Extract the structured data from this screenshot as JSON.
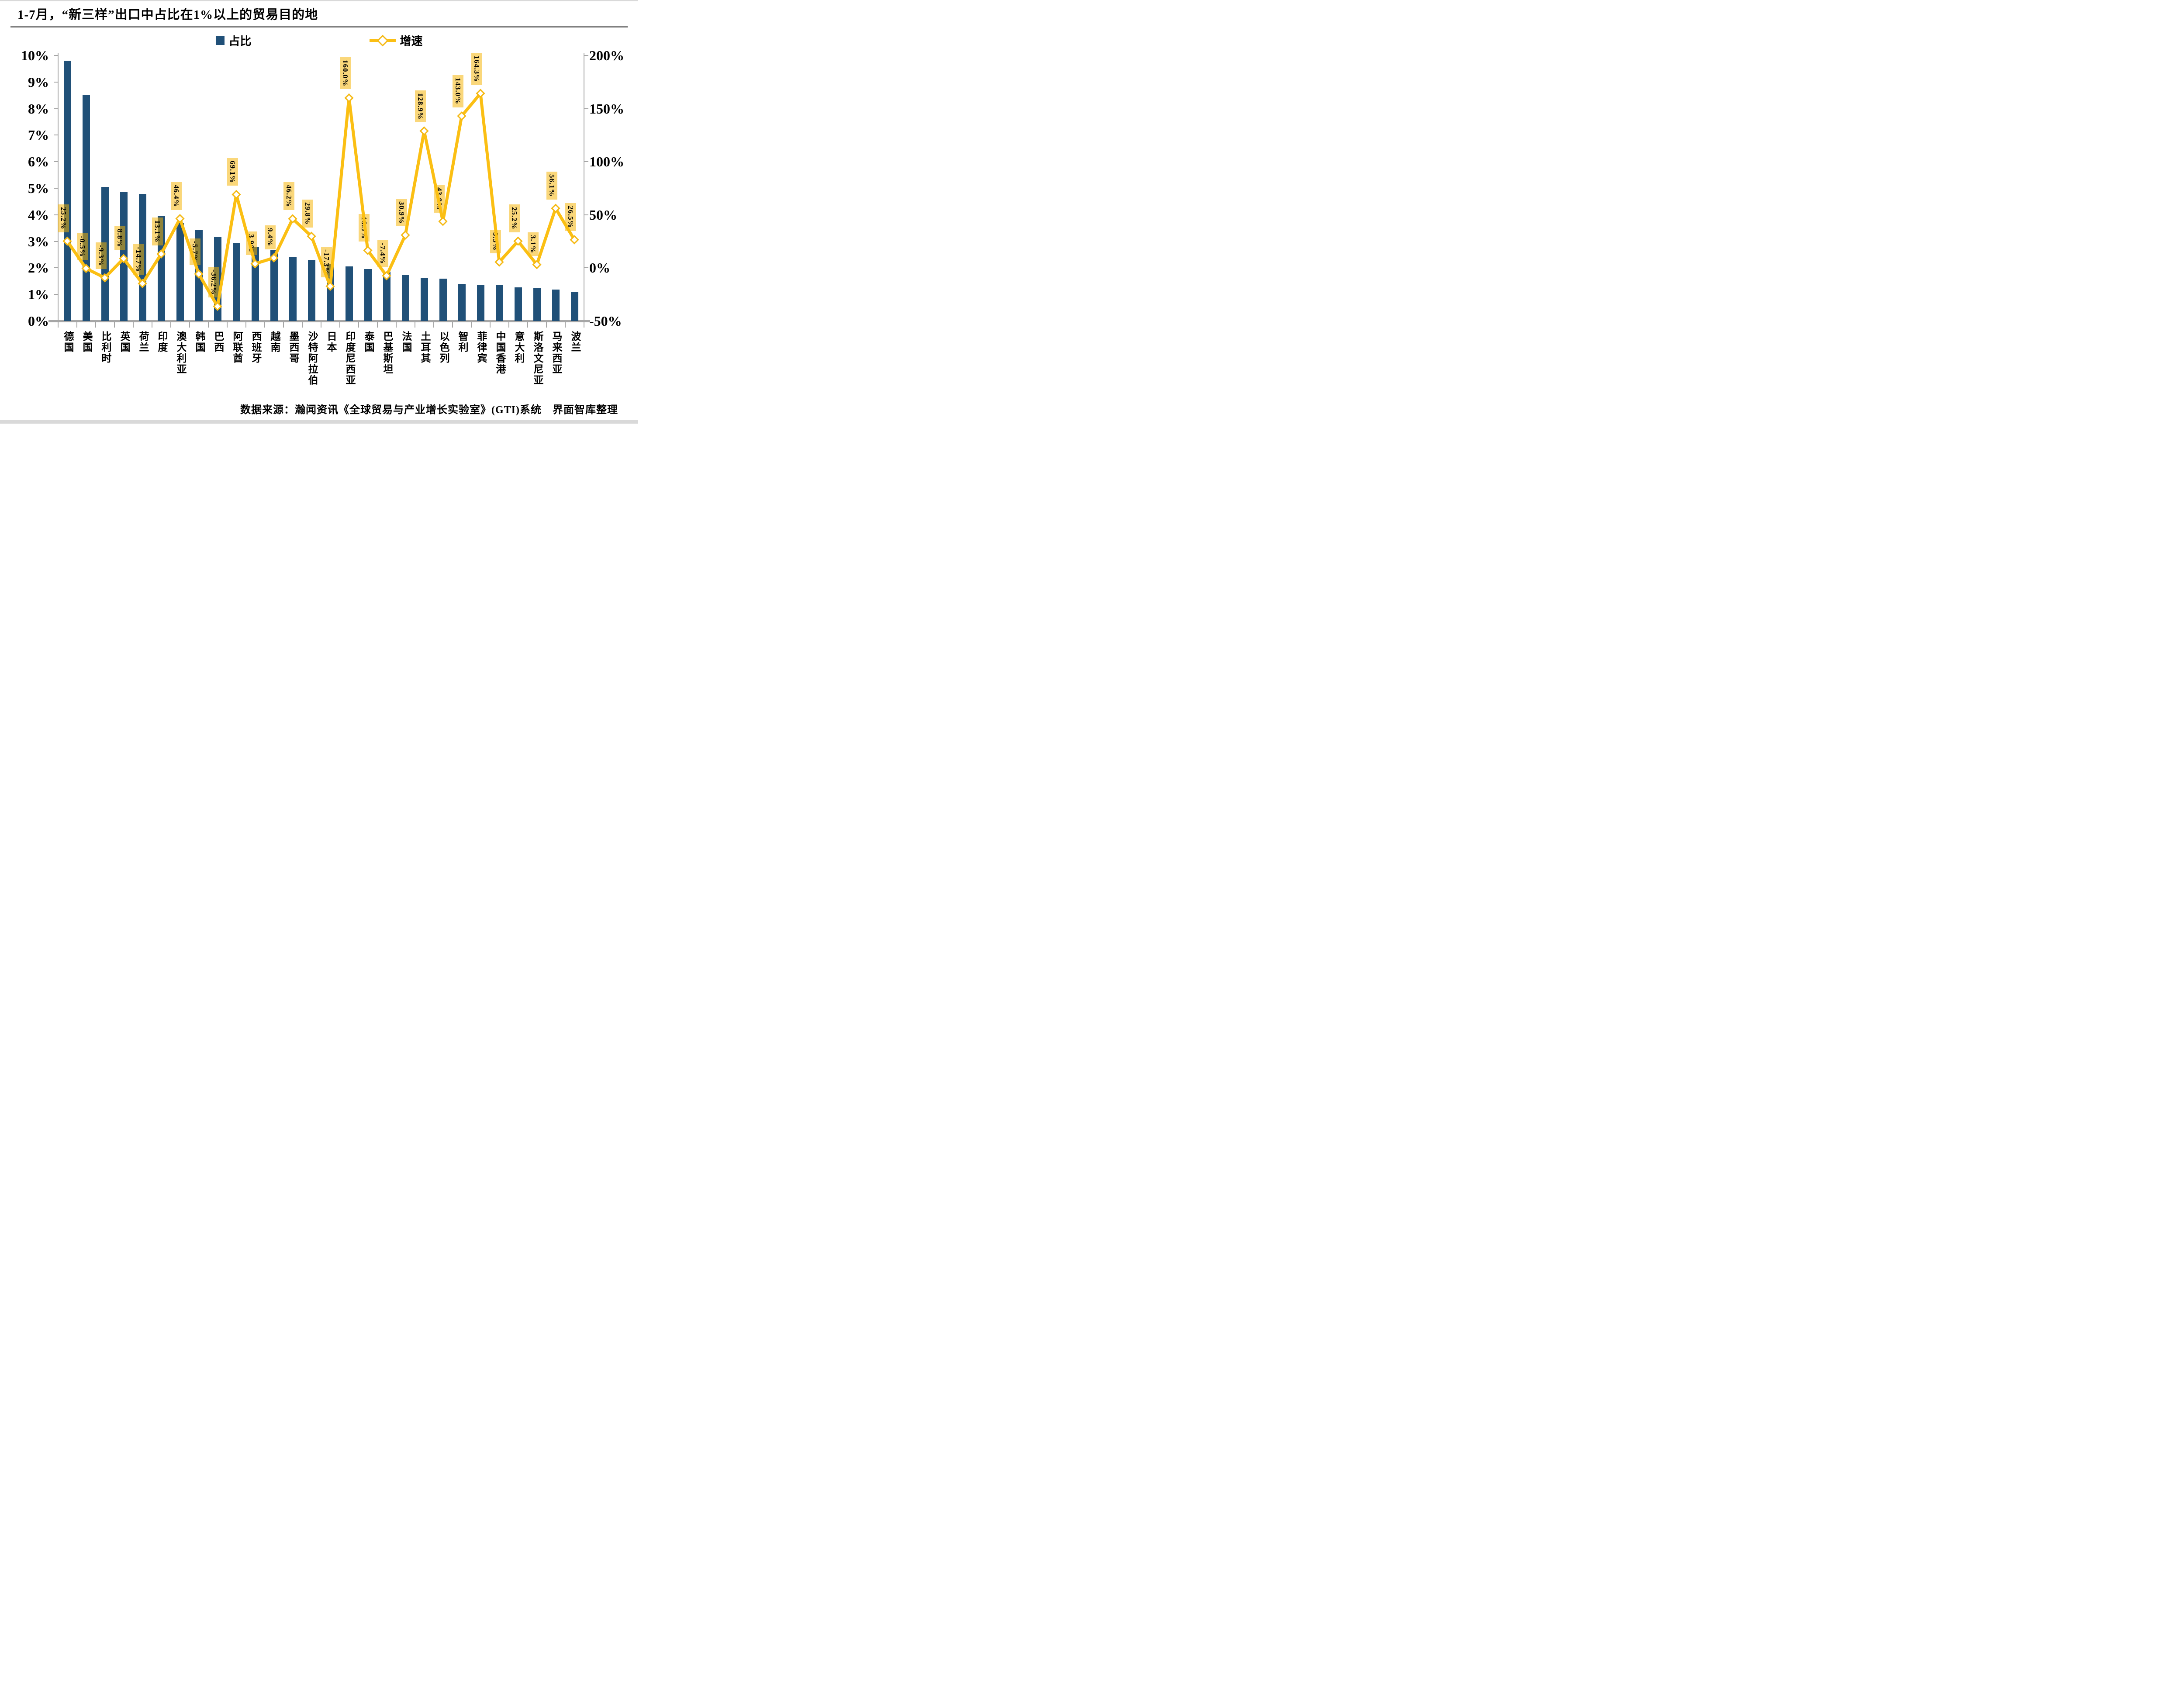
{
  "chart_data": {
    "type": "bar",
    "combo_types": [
      "bar",
      "line"
    ],
    "title": "1-7月，“新三样”出口中占比在1%以上的贸易目的地",
    "categories": [
      "德国",
      "美国",
      "比利时",
      "英国",
      "荷兰",
      "印度",
      "澳大利亚",
      "韩国",
      "巴西",
      "阿联酋",
      "西班牙",
      "越南",
      "墨西哥",
      "沙特阿拉伯",
      "日本",
      "印度尼西亚",
      "泰国",
      "巴基斯坦",
      "法国",
      "土耳其",
      "以色列",
      "智利",
      "菲律宾",
      "中国香港",
      "意大利",
      "斯洛文尼亚",
      "马来西亚",
      "波兰"
    ],
    "series": [
      {
        "name": "占比",
        "type": "bar",
        "axis": "left",
        "unit": "%",
        "values": [
          9.8,
          8.5,
          5.05,
          4.85,
          4.78,
          3.97,
          3.7,
          3.42,
          3.18,
          2.95,
          2.8,
          2.67,
          2.4,
          2.3,
          2.16,
          2.06,
          1.96,
          1.86,
          1.72,
          1.63,
          1.6,
          1.4,
          1.36,
          1.35,
          1.26,
          1.24,
          1.18,
          1.1
        ]
      },
      {
        "name": "增速",
        "type": "line",
        "axis": "right",
        "unit": "%",
        "values": [
          25.2,
          -0.5,
          -9.3,
          8.8,
          -14.7,
          13.1,
          46.4,
          -5.7,
          -36.2,
          69.1,
          3.9,
          9.4,
          46.2,
          29.8,
          -17.3,
          160.0,
          16.5,
          -7.4,
          30.9,
          128.9,
          43.8,
          143.0,
          164.3,
          5.5,
          25.2,
          3.1,
          56.1,
          26.5
        ],
        "labels": [
          "25.2%",
          "-0.5%",
          "-9.3%",
          "8.8%",
          "-14.7%",
          "13.1%",
          "46.4%",
          "-5.7%",
          "-36.2%",
          "69.1%",
          "3.9%",
          "9.4%",
          "46.2%",
          "29.8%",
          "-17.3%",
          "160.0%",
          "16.5%",
          "-7.4%",
          "30.9%",
          "128.9%",
          "43.8%",
          "143.0%",
          "164.3%",
          "5.5%",
          "25.2%",
          "3.1%",
          "56.1%",
          "26.5%"
        ]
      }
    ],
    "left_axis": {
      "min": 0,
      "max": 10,
      "step": 1,
      "ticks": [
        "0%",
        "1%",
        "2%",
        "3%",
        "4%",
        "5%",
        "6%",
        "7%",
        "8%",
        "9%",
        "10%"
      ]
    },
    "right_axis": {
      "min": -50,
      "max": 200,
      "step": 50,
      "ticks": [
        "-50%",
        "0%",
        "50%",
        "100%",
        "150%",
        "200%"
      ]
    },
    "legend_position": "top",
    "grid": false
  },
  "colors": {
    "bar": "#205078",
    "line": "#FBBF13",
    "marker_fill": "#FFFFFF",
    "marker_stroke": "#F5B914",
    "label_background": "rgba(246,179,0,0.52)",
    "axis_gray": "#A6A6A6",
    "title_rule_gray": "#808080",
    "frame_gray": "#D9D9D9",
    "text": "#000000"
  },
  "source_note": "数据来源：瀚闻资讯《全球贸易与产业增长实验室》(GTI)系统　界面智库整理"
}
